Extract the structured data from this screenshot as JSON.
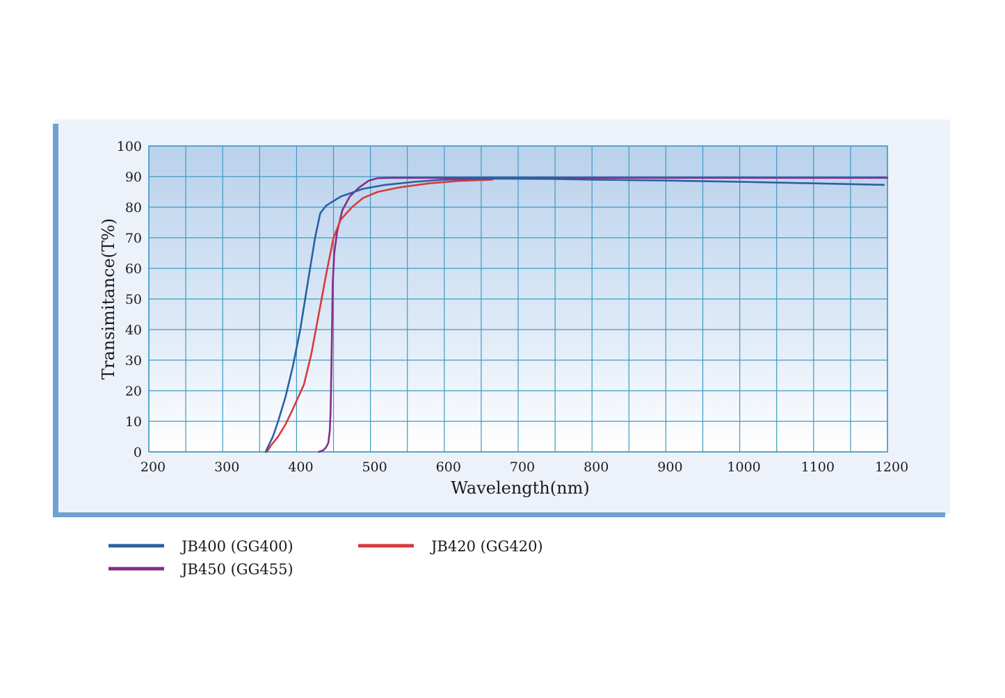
{
  "chart_data": {
    "type": "line",
    "title": "",
    "xlabel": "Wavelength(nm)",
    "ylabel": "Transimitance(T%)",
    "xlim": [
      200,
      1200
    ],
    "ylim": [
      0,
      100
    ],
    "x_ticks": [
      200,
      300,
      400,
      500,
      600,
      700,
      800,
      900,
      1000,
      1100,
      1200
    ],
    "y_ticks": [
      0,
      10,
      20,
      30,
      40,
      50,
      60,
      70,
      80,
      90,
      100
    ],
    "x_grid_step": 50,
    "grid": true,
    "legend_position": "bottom-left",
    "series": [
      {
        "name": "JB400 (GG400)",
        "color": "#2b5fa3",
        "points": [
          [
            358,
            0
          ],
          [
            362,
            2
          ],
          [
            368,
            5
          ],
          [
            375,
            10
          ],
          [
            385,
            18
          ],
          [
            395,
            28
          ],
          [
            405,
            40
          ],
          [
            415,
            55
          ],
          [
            425,
            70
          ],
          [
            432,
            78
          ],
          [
            440,
            80.5
          ],
          [
            460,
            83.5
          ],
          [
            490,
            86
          ],
          [
            520,
            87.3
          ],
          [
            560,
            88.3
          ],
          [
            600,
            89
          ],
          [
            650,
            89.3
          ],
          [
            700,
            89.3
          ],
          [
            750,
            89.2
          ],
          [
            800,
            89
          ],
          [
            900,
            88.7
          ],
          [
            1000,
            88.3
          ],
          [
            1100,
            87.8
          ],
          [
            1195,
            87.3
          ]
        ]
      },
      {
        "name": "JB420 (GG420)",
        "color": "#d83a3a",
        "points": [
          [
            360,
            0
          ],
          [
            365,
            2
          ],
          [
            375,
            5
          ],
          [
            385,
            9
          ],
          [
            395,
            14
          ],
          [
            410,
            22
          ],
          [
            420,
            32
          ],
          [
            430,
            45
          ],
          [
            440,
            58
          ],
          [
            450,
            70
          ],
          [
            460,
            76
          ],
          [
            475,
            80
          ],
          [
            490,
            83
          ],
          [
            510,
            85
          ],
          [
            540,
            86.5
          ],
          [
            580,
            87.8
          ],
          [
            620,
            88.6
          ],
          [
            665,
            89
          ]
        ]
      },
      {
        "name": "JB450 (GG455)",
        "color": "#8a2a8a",
        "points": [
          [
            430,
            0
          ],
          [
            436,
            0.5
          ],
          [
            440,
            1.5
          ],
          [
            443,
            3
          ],
          [
            445,
            7
          ],
          [
            446,
            13
          ],
          [
            447,
            25
          ],
          [
            448,
            40
          ],
          [
            449,
            55
          ],
          [
            451,
            65
          ],
          [
            455,
            72
          ],
          [
            462,
            79
          ],
          [
            472,
            83.5
          ],
          [
            485,
            86.5
          ],
          [
            498,
            88.7
          ],
          [
            510,
            89.5
          ],
          [
            530,
            89.6
          ],
          [
            700,
            89.6
          ],
          [
            900,
            89.6
          ],
          [
            1200,
            89.6
          ]
        ]
      }
    ]
  }
}
